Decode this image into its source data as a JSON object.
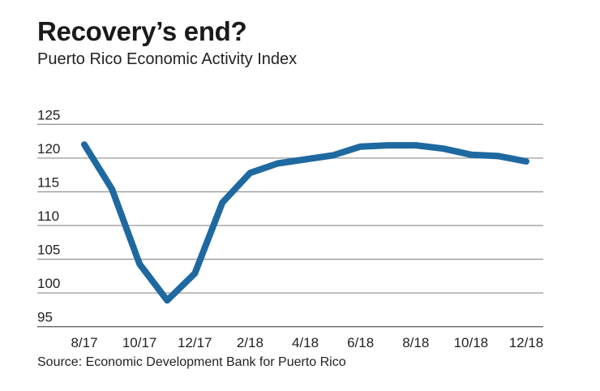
{
  "chart_data": {
    "type": "line",
    "title": "Recovery’s end?",
    "subtitle": "Puerto Rico Economic Activity Index",
    "source": "Source: Economic Development Bank for Puerto Rico",
    "x": [
      "8/17",
      "9/17",
      "10/17",
      "11/17",
      "12/17",
      "1/18",
      "2/18",
      "3/18",
      "4/18",
      "5/18",
      "6/18",
      "7/18",
      "8/18",
      "9/18",
      "10/18",
      "11/18",
      "12/18"
    ],
    "x_tick_labels": [
      "8/17",
      "10/17",
      "12/17",
      "2/18",
      "4/18",
      "6/18",
      "8/18",
      "10/18",
      "12/18"
    ],
    "series": [
      {
        "values": [
          122.0,
          115.4,
          104.3,
          98.9,
          102.9,
          113.4,
          117.8,
          119.2,
          119.8,
          120.4,
          121.7,
          121.9,
          121.9,
          121.4,
          120.5,
          120.3,
          119.5
        ]
      }
    ],
    "y_ticks": [
      95,
      100,
      105,
      110,
      115,
      120,
      125
    ],
    "ylim": [
      95,
      125
    ],
    "grid": true,
    "line_color": "#1f69a1",
    "grid_color": "#999999"
  }
}
